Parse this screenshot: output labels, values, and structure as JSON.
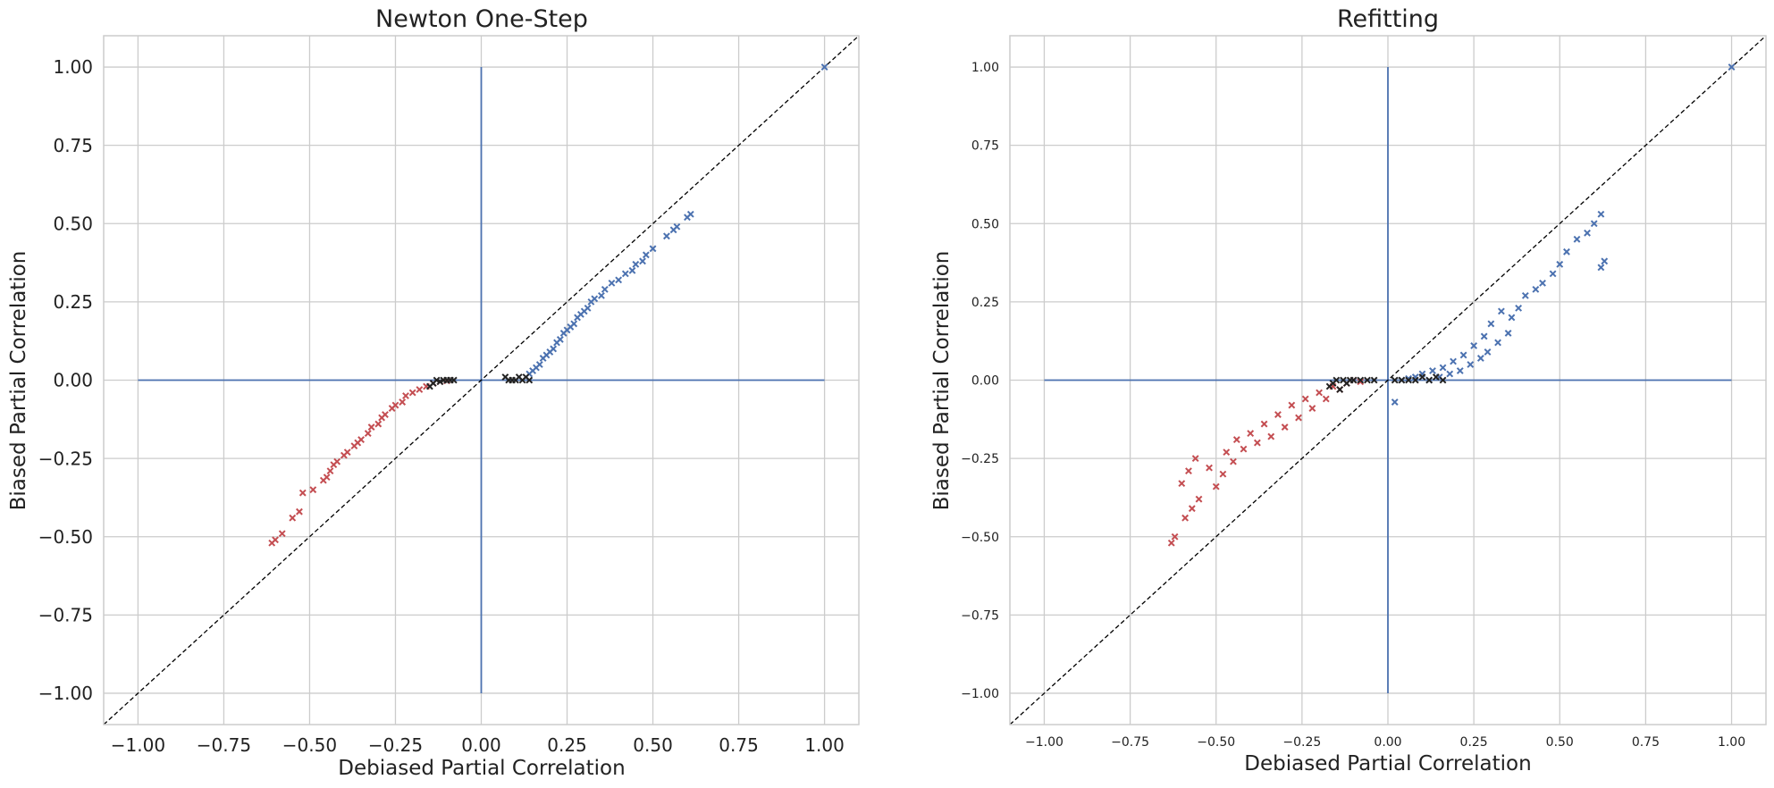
{
  "figure": {
    "background": "#ffffff"
  },
  "colors": {
    "positive": "#4c72b0",
    "negative": "#c44e52",
    "near_zero": "#222222",
    "grid": "#cccccc",
    "axes_line": "#4c72b0",
    "identity_line": "#000000"
  },
  "chart_data": [
    {
      "type": "scatter",
      "title": "Newton One-Step",
      "xlabel": "Debiased Partial Correlation",
      "ylabel": "Biased Partial Correlation",
      "xlim": [
        -1.1,
        1.1
      ],
      "ylim": [
        -1.1,
        1.1
      ],
      "xticks": [
        -1.0,
        -0.75,
        -0.5,
        -0.25,
        0.0,
        0.25,
        0.5,
        0.75,
        1.0
      ],
      "yticks": [
        -1.0,
        -0.75,
        -0.5,
        -0.25,
        0.0,
        0.25,
        0.5,
        0.75,
        1.0
      ],
      "xtick_labels": [
        "−1.00",
        "−0.75",
        "−0.50",
        "−0.25",
        "0.00",
        "0.25",
        "0.50",
        "0.75",
        "1.00"
      ],
      "ytick_labels": [
        "−1.00",
        "−0.75",
        "−0.50",
        "−0.25",
        "0.00",
        "0.25",
        "0.50",
        "0.75",
        "1.00"
      ],
      "grid": true,
      "marker": "x",
      "reference_lines": {
        "identity": true,
        "horizontal_zero": [
          -1.0,
          1.0
        ],
        "vertical_zero": [
          -1.0,
          1.0
        ]
      },
      "series": [
        {
          "color": "#4c72b0",
          "points": [
            [
              1.0,
              1.0
            ],
            [
              0.61,
              0.53
            ],
            [
              0.6,
              0.52
            ],
            [
              0.57,
              0.49
            ],
            [
              0.56,
              0.48
            ],
            [
              0.54,
              0.46
            ],
            [
              0.5,
              0.42
            ],
            [
              0.48,
              0.4
            ],
            [
              0.47,
              0.38
            ],
            [
              0.45,
              0.37
            ],
            [
              0.44,
              0.35
            ],
            [
              0.42,
              0.34
            ],
            [
              0.4,
              0.32
            ],
            [
              0.38,
              0.31
            ],
            [
              0.36,
              0.29
            ],
            [
              0.35,
              0.27
            ],
            [
              0.33,
              0.26
            ],
            [
              0.32,
              0.25
            ],
            [
              0.31,
              0.23
            ],
            [
              0.3,
              0.22
            ],
            [
              0.29,
              0.21
            ],
            [
              0.28,
              0.2
            ],
            [
              0.27,
              0.18
            ],
            [
              0.26,
              0.17
            ],
            [
              0.25,
              0.16
            ],
            [
              0.24,
              0.15
            ],
            [
              0.23,
              0.13
            ],
            [
              0.22,
              0.12
            ],
            [
              0.21,
              0.1
            ],
            [
              0.2,
              0.09
            ],
            [
              0.19,
              0.08
            ],
            [
              0.18,
              0.07
            ],
            [
              0.17,
              0.05
            ],
            [
              0.16,
              0.04
            ],
            [
              0.15,
              0.03
            ],
            [
              0.14,
              0.02
            ]
          ]
        },
        {
          "color": "#c44e52",
          "points": [
            [
              -0.61,
              -0.52
            ],
            [
              -0.6,
              -0.51
            ],
            [
              -0.58,
              -0.49
            ],
            [
              -0.55,
              -0.44
            ],
            [
              -0.53,
              -0.42
            ],
            [
              -0.52,
              -0.36
            ],
            [
              -0.49,
              -0.35
            ],
            [
              -0.46,
              -0.32
            ],
            [
              -0.45,
              -0.31
            ],
            [
              -0.44,
              -0.29
            ],
            [
              -0.43,
              -0.27
            ],
            [
              -0.42,
              -0.26
            ],
            [
              -0.4,
              -0.24
            ],
            [
              -0.39,
              -0.23
            ],
            [
              -0.37,
              -0.21
            ],
            [
              -0.36,
              -0.2
            ],
            [
              -0.35,
              -0.19
            ],
            [
              -0.33,
              -0.17
            ],
            [
              -0.32,
              -0.15
            ],
            [
              -0.3,
              -0.14
            ],
            [
              -0.29,
              -0.12
            ],
            [
              -0.28,
              -0.11
            ],
            [
              -0.26,
              -0.09
            ],
            [
              -0.25,
              -0.08
            ],
            [
              -0.23,
              -0.07
            ],
            [
              -0.22,
              -0.05
            ],
            [
              -0.2,
              -0.04
            ],
            [
              -0.18,
              -0.03
            ],
            [
              -0.16,
              -0.02
            ],
            [
              -0.14,
              -0.01
            ],
            [
              -0.12,
              -0.005
            ],
            [
              -0.1,
              -0.002
            ]
          ]
        },
        {
          "color": "#222222",
          "points": [
            [
              -0.15,
              -0.02
            ],
            [
              -0.14,
              -0.01
            ],
            [
              -0.13,
              0.0
            ],
            [
              -0.12,
              -0.005
            ],
            [
              -0.11,
              0.0
            ],
            [
              -0.1,
              0.0
            ],
            [
              -0.09,
              0.0
            ],
            [
              -0.08,
              0.0
            ],
            [
              0.07,
              0.01
            ],
            [
              0.08,
              0.0
            ],
            [
              0.09,
              0.0
            ],
            [
              0.1,
              0.0
            ],
            [
              0.11,
              0.01
            ],
            [
              0.12,
              0.0
            ],
            [
              0.13,
              0.01
            ],
            [
              0.14,
              0.0
            ]
          ]
        }
      ]
    },
    {
      "type": "scatter",
      "title": "Refitting",
      "xlabel": "Debiased Partial Correlation",
      "ylabel": "Biased Partial Correlation",
      "xlim": [
        -1.1,
        1.1
      ],
      "ylim": [
        -1.1,
        1.1
      ],
      "xticks": [
        -1.0,
        -0.75,
        -0.5,
        -0.25,
        0.0,
        0.25,
        0.5,
        0.75,
        1.0
      ],
      "yticks": [
        -1.0,
        -0.75,
        -0.5,
        -0.25,
        0.0,
        0.25,
        0.5,
        0.75,
        1.0
      ],
      "xtick_labels": [
        "−1.00",
        "−0.75",
        "−0.50",
        "−0.25",
        "0.00",
        "0.25",
        "0.50",
        "0.75",
        "1.00"
      ],
      "ytick_labels": [
        "−1.00",
        "−0.75",
        "−0.50",
        "−0.25",
        "0.00",
        "0.25",
        "0.50",
        "0.75",
        "1.00"
      ],
      "grid": true,
      "marker": "x",
      "reference_lines": {
        "identity": true,
        "horizontal_zero": [
          -1.0,
          1.0
        ],
        "vertical_zero": [
          -1.0,
          1.0
        ]
      },
      "series": [
        {
          "color": "#4c72b0",
          "points": [
            [
              1.0,
              1.0
            ],
            [
              0.62,
              0.53
            ],
            [
              0.6,
              0.5
            ],
            [
              0.63,
              0.38
            ],
            [
              0.62,
              0.36
            ],
            [
              0.58,
              0.47
            ],
            [
              0.55,
              0.45
            ],
            [
              0.52,
              0.41
            ],
            [
              0.5,
              0.37
            ],
            [
              0.48,
              0.34
            ],
            [
              0.45,
              0.31
            ],
            [
              0.43,
              0.29
            ],
            [
              0.4,
              0.27
            ],
            [
              0.38,
              0.23
            ],
            [
              0.36,
              0.2
            ],
            [
              0.35,
              0.15
            ],
            [
              0.33,
              0.22
            ],
            [
              0.32,
              0.12
            ],
            [
              0.3,
              0.18
            ],
            [
              0.29,
              0.09
            ],
            [
              0.28,
              0.14
            ],
            [
              0.27,
              0.07
            ],
            [
              0.25,
              0.11
            ],
            [
              0.24,
              0.05
            ],
            [
              0.22,
              0.08
            ],
            [
              0.21,
              0.03
            ],
            [
              0.19,
              0.06
            ],
            [
              0.18,
              0.02
            ],
            [
              0.16,
              0.04
            ],
            [
              0.15,
              0.01
            ],
            [
              0.13,
              0.03
            ],
            [
              0.12,
              0.0
            ],
            [
              0.1,
              0.02
            ],
            [
              0.08,
              0.01
            ],
            [
              0.06,
              0.005
            ],
            [
              0.04,
              0.0
            ],
            [
              0.02,
              -0.07
            ]
          ]
        },
        {
          "color": "#c44e52",
          "points": [
            [
              -0.63,
              -0.52
            ],
            [
              -0.62,
              -0.5
            ],
            [
              -0.59,
              -0.44
            ],
            [
              -0.57,
              -0.41
            ],
            [
              -0.55,
              -0.38
            ],
            [
              -0.6,
              -0.33
            ],
            [
              -0.58,
              -0.29
            ],
            [
              -0.56,
              -0.25
            ],
            [
              -0.52,
              -0.28
            ],
            [
              -0.5,
              -0.34
            ],
            [
              -0.48,
              -0.3
            ],
            [
              -0.47,
              -0.23
            ],
            [
              -0.45,
              -0.26
            ],
            [
              -0.44,
              -0.19
            ],
            [
              -0.42,
              -0.22
            ],
            [
              -0.4,
              -0.17
            ],
            [
              -0.38,
              -0.2
            ],
            [
              -0.36,
              -0.14
            ],
            [
              -0.34,
              -0.18
            ],
            [
              -0.32,
              -0.11
            ],
            [
              -0.3,
              -0.15
            ],
            [
              -0.28,
              -0.08
            ],
            [
              -0.26,
              -0.12
            ],
            [
              -0.24,
              -0.06
            ],
            [
              -0.22,
              -0.09
            ],
            [
              -0.2,
              -0.04
            ],
            [
              -0.18,
              -0.06
            ],
            [
              -0.16,
              -0.02
            ],
            [
              -0.14,
              -0.03
            ],
            [
              -0.12,
              -0.01
            ],
            [
              -0.1,
              0.0
            ],
            [
              -0.08,
              -0.005
            ]
          ]
        },
        {
          "color": "#222222",
          "points": [
            [
              -0.17,
              -0.02
            ],
            [
              -0.16,
              -0.01
            ],
            [
              -0.15,
              0.0
            ],
            [
              -0.14,
              -0.03
            ],
            [
              -0.13,
              0.0
            ],
            [
              -0.12,
              -0.01
            ],
            [
              -0.11,
              0.0
            ],
            [
              -0.1,
              0.0
            ],
            [
              -0.08,
              0.0
            ],
            [
              -0.06,
              0.0
            ],
            [
              -0.04,
              0.0
            ],
            [
              0.02,
              0.0
            ],
            [
              0.04,
              0.0
            ],
            [
              0.06,
              0.0
            ],
            [
              0.08,
              0.0
            ],
            [
              0.1,
              0.01
            ],
            [
              0.12,
              0.0
            ],
            [
              0.14,
              0.01
            ],
            [
              0.16,
              0.0
            ]
          ]
        }
      ]
    }
  ]
}
